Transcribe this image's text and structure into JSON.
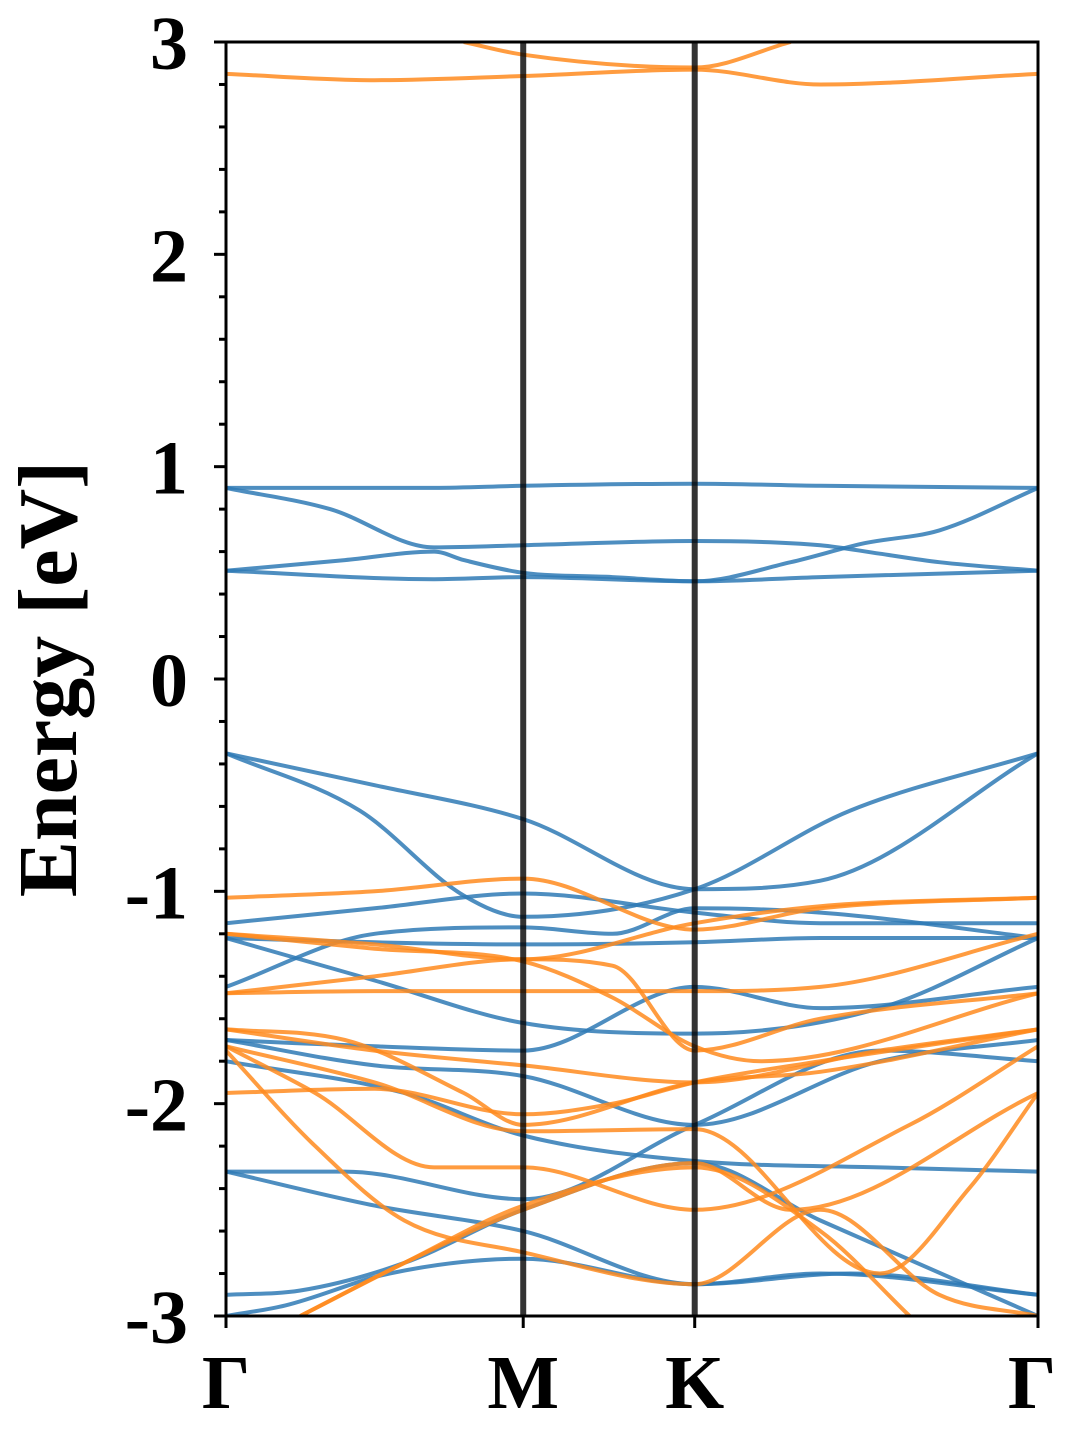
{
  "chart_data": {
    "type": "line",
    "title": "",
    "xlabel": "",
    "ylabel": "Energy [eV]",
    "ylim": [
      -3,
      3
    ],
    "y_ticks": [
      {
        "value": 3,
        "label": "3"
      },
      {
        "value": 2,
        "label": "2"
      },
      {
        "value": 1,
        "label": "1"
      },
      {
        "value": 0,
        "label": "0"
      },
      {
        "value": -1,
        "label": "-1"
      },
      {
        "value": -2,
        "label": "-2"
      },
      {
        "value": -3,
        "label": "-3"
      }
    ],
    "k_path": [
      {
        "label": "Γ",
        "position": 0.0
      },
      {
        "label": "M",
        "position": 1.0
      },
      {
        "label": "K",
        "position": 1.577
      },
      {
        "label": "Γ",
        "position": 2.732
      }
    ],
    "grid": false,
    "legend": "none",
    "series_colors": {
      "blue": "#2f7ab5",
      "orange": "#ff8b1f"
    },
    "series": [
      {
        "color": "blue",
        "x": [
          0,
          0.7,
          1.0,
          1.577,
          2.0,
          2.732
        ],
        "y": [
          0.9,
          0.9,
          0.91,
          0.92,
          0.91,
          0.9
        ]
      },
      {
        "color": "blue",
        "x": [
          0,
          0.35,
          0.7,
          1.0,
          1.577,
          2.0,
          2.2,
          2.4,
          2.732
        ],
        "y": [
          0.9,
          0.8,
          0.62,
          0.63,
          0.65,
          0.63,
          0.59,
          0.55,
          0.51
        ]
      },
      {
        "color": "blue",
        "x": [
          0,
          0.4,
          0.7,
          0.8,
          1.0,
          1.3,
          1.577,
          1.9,
          2.15,
          2.4,
          2.732
        ],
        "y": [
          0.51,
          0.56,
          0.6,
          0.56,
          0.5,
          0.48,
          0.46,
          0.55,
          0.64,
          0.7,
          0.9
        ]
      },
      {
        "color": "blue",
        "x": [
          0,
          0.7,
          1.0,
          1.577,
          2.0,
          2.732
        ],
        "y": [
          0.51,
          0.47,
          0.48,
          0.46,
          0.48,
          0.51
        ]
      },
      {
        "color": "blue",
        "x": [
          0,
          0.5,
          1.0,
          1.577,
          2.0,
          2.732
        ],
        "y": [
          -0.35,
          -0.5,
          -0.66,
          -0.99,
          -0.95,
          -0.35
        ]
      },
      {
        "color": "blue",
        "x": [
          0,
          0.45,
          0.8,
          1.0,
          1.577,
          2.1,
          2.732
        ],
        "y": [
          -0.35,
          -0.62,
          -1.02,
          -1.12,
          -0.99,
          -0.62,
          -0.35
        ]
      },
      {
        "color": "blue",
        "x": [
          0,
          0.5,
          1.0,
          1.577,
          2.0,
          2.732
        ],
        "y": [
          -1.15,
          -1.08,
          -1.01,
          -1.1,
          -1.15,
          -1.15
        ]
      },
      {
        "color": "blue",
        "x": [
          0,
          0.5,
          1.0,
          1.577,
          2.0,
          2.732
        ],
        "y": [
          -1.22,
          -1.24,
          -1.25,
          -1.24,
          -1.22,
          -1.22
        ]
      },
      {
        "color": "blue",
        "x": [
          0,
          0.5,
          1.0,
          1.3,
          1.577,
          2.0,
          2.732
        ],
        "y": [
          -1.45,
          -1.2,
          -1.17,
          -1.2,
          -1.08,
          -1.1,
          -1.22
        ]
      },
      {
        "color": "blue",
        "x": [
          0,
          0.5,
          1.0,
          1.577,
          2.2,
          2.732
        ],
        "y": [
          -1.22,
          -1.42,
          -1.62,
          -1.67,
          -1.55,
          -1.22
        ]
      },
      {
        "color": "blue",
        "x": [
          0,
          0.5,
          1.0,
          1.577,
          2.0,
          2.732
        ],
        "y": [
          -1.7,
          -1.73,
          -1.75,
          -1.45,
          -1.55,
          -1.45
        ]
      },
      {
        "color": "blue",
        "x": [
          0,
          0.5,
          1.0,
          1.577,
          2.2,
          2.732
        ],
        "y": [
          -1.7,
          -1.82,
          -1.87,
          -2.1,
          -1.8,
          -1.7
        ]
      },
      {
        "color": "blue",
        "x": [
          0,
          0.6,
          1.0,
          1.577,
          2.2,
          2.732
        ],
        "y": [
          -1.8,
          -1.95,
          -2.15,
          -2.27,
          -2.3,
          -2.32
        ]
      },
      {
        "color": "blue",
        "x": [
          0,
          0.4,
          1.0,
          1.577,
          2.2,
          2.732
        ],
        "y": [
          -2.32,
          -2.32,
          -2.45,
          -2.1,
          -1.75,
          -1.8
        ]
      },
      {
        "color": "blue",
        "x": [
          0,
          0.5,
          1.0,
          1.577,
          2.1,
          2.732
        ],
        "y": [
          -2.32,
          -2.48,
          -2.6,
          -2.85,
          -2.8,
          -2.9
        ]
      },
      {
        "color": "blue",
        "x": [
          0,
          0.25,
          0.6,
          1.0,
          1.577,
          2.0,
          2.732
        ],
        "y": [
          -2.9,
          -2.88,
          -2.75,
          -2.5,
          -2.28,
          -2.55,
          -3.0
        ]
      },
      {
        "color": "blue",
        "x": [
          0,
          0.2,
          0.55,
          1.0,
          1.577,
          2.0,
          2.732
        ],
        "y": [
          -3.0,
          -2.95,
          -2.8,
          -2.73,
          -2.85,
          -2.8,
          -2.9
        ]
      },
      {
        "color": "orange",
        "x": [
          0,
          0.5,
          1.0,
          1.577,
          2.0,
          2.732
        ],
        "y": [
          -1.03,
          -1.0,
          -0.94,
          -1.18,
          -1.08,
          -1.03
        ]
      },
      {
        "color": "orange",
        "x": [
          0,
          0.5,
          1.0,
          1.577,
          2.0,
          2.732
        ],
        "y": [
          -1.2,
          -1.25,
          -1.32,
          -1.15,
          -1.07,
          -1.03
        ]
      },
      {
        "color": "orange",
        "x": [
          0,
          0.5,
          1.0,
          1.3,
          1.577,
          1.8,
          2.732
        ],
        "y": [
          -1.2,
          -1.27,
          -1.33,
          -1.5,
          -1.73,
          -1.8,
          -1.48
        ]
      },
      {
        "color": "orange",
        "x": [
          0,
          0.5,
          1.0,
          1.577,
          2.0,
          2.732
        ],
        "y": [
          -1.48,
          -1.47,
          -1.47,
          -1.47,
          -1.45,
          -1.2
        ]
      },
      {
        "color": "orange",
        "x": [
          0,
          0.5,
          1.0,
          1.3,
          1.577,
          2.0,
          2.732
        ],
        "y": [
          -1.48,
          -1.4,
          -1.32,
          -1.35,
          -1.75,
          -1.6,
          -1.48
        ]
      },
      {
        "color": "orange",
        "x": [
          0,
          0.4,
          0.8,
          1.0,
          1.577,
          2.0,
          2.732
        ],
        "y": [
          -1.65,
          -1.7,
          -1.95,
          -2.1,
          -1.9,
          -1.85,
          -1.65
        ]
      },
      {
        "color": "orange",
        "x": [
          0,
          0.5,
          1.0,
          1.577,
          2.2,
          2.732
        ],
        "y": [
          -1.65,
          -1.75,
          -1.82,
          -1.9,
          -1.75,
          -1.65
        ]
      },
      {
        "color": "orange",
        "x": [
          0,
          0.5,
          1.0,
          1.3,
          1.577,
          2.0,
          2.732
        ],
        "y": [
          -1.95,
          -1.93,
          -2.05,
          -2.0,
          -1.9,
          -1.8,
          -1.65
        ]
      },
      {
        "color": "orange",
        "x": [
          0,
          0.3,
          0.7,
          1.0,
          1.577,
          2.3,
          2.732
        ],
        "y": [
          -1.73,
          -1.95,
          -2.3,
          -2.3,
          -2.5,
          -2.1,
          -1.73
        ]
      },
      {
        "color": "orange",
        "x": [
          0,
          0.5,
          1.0,
          1.577,
          2.2,
          2.5,
          2.732
        ],
        "y": [
          -1.73,
          -1.9,
          -2.13,
          -2.12,
          -2.8,
          -2.4,
          -1.95
        ]
      },
      {
        "color": "orange",
        "x": [
          0,
          0.3,
          0.6,
          1.0,
          1.577,
          2.0,
          2.4,
          2.732
        ],
        "y": [
          -1.75,
          -2.2,
          -2.55,
          -2.7,
          -2.85,
          -2.5,
          -2.9,
          -3.0
        ]
      },
      {
        "color": "orange",
        "x": [
          0.25,
          0.6,
          1.0,
          1.577,
          1.9,
          2.732
        ],
        "y": [
          -3.0,
          -2.75,
          -2.5,
          -2.28,
          -2.5,
          -1.95
        ]
      },
      {
        "color": "orange",
        "x": [
          0.25,
          0.6,
          1.0,
          1.577,
          2.0,
          2.3
        ],
        "y": [
          -3.0,
          -2.75,
          -2.48,
          -2.3,
          -2.6,
          -3.0
        ]
      },
      {
        "color": "orange",
        "x": [
          0,
          0.5,
          1.0,
          1.577,
          2.0,
          2.732
        ],
        "y": [
          2.85,
          2.82,
          2.84,
          2.87,
          2.8,
          2.85
        ]
      },
      {
        "color": "orange",
        "x": [
          0.8,
          1.0,
          1.577,
          1.9
        ],
        "y": [
          3.0,
          2.94,
          2.88,
          3.0
        ]
      }
    ]
  }
}
